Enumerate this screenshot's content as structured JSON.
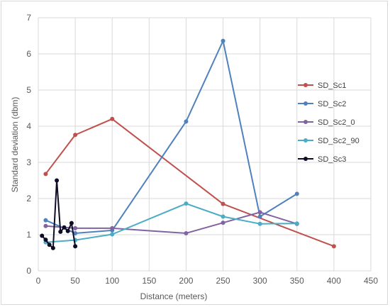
{
  "chart_data": {
    "type": "line",
    "title": "",
    "xlabel": "Distance (meters)",
    "ylabel": "Standard deviation (dbm)",
    "xlim": [
      0,
      450
    ],
    "ylim": [
      0,
      7
    ],
    "xticks": [
      0,
      50,
      100,
      150,
      200,
      250,
      300,
      350,
      400,
      450
    ],
    "yticks": [
      0,
      1,
      2,
      3,
      4,
      5,
      6,
      7
    ],
    "grid": true,
    "legend_position": "right",
    "series": [
      {
        "name": "SD_Sc1",
        "color": "#c0504d",
        "points": [
          [
            10,
            2.68
          ],
          [
            50,
            3.76
          ],
          [
            100,
            4.2
          ],
          [
            250,
            1.85
          ],
          [
            400,
            0.68
          ]
        ]
      },
      {
        "name": "SD_Sc2",
        "color": "#4f81bd",
        "points": [
          [
            10,
            1.4
          ],
          [
            50,
            1.04
          ],
          [
            100,
            1.12
          ],
          [
            200,
            4.13
          ],
          [
            250,
            6.36
          ],
          [
            300,
            1.5
          ],
          [
            350,
            2.13
          ]
        ]
      },
      {
        "name": "SD_Sc2_0",
        "color": "#8064a2",
        "points": [
          [
            10,
            1.24
          ],
          [
            50,
            1.18
          ],
          [
            100,
            1.18
          ],
          [
            200,
            1.04
          ],
          [
            250,
            1.33
          ],
          [
            300,
            1.62
          ],
          [
            350,
            1.3
          ]
        ]
      },
      {
        "name": "SD_Sc2_90",
        "color": "#4bacc6",
        "points": [
          [
            10,
            0.79
          ],
          [
            50,
            0.85
          ],
          [
            100,
            1.01
          ],
          [
            200,
            1.86
          ],
          [
            250,
            1.5
          ],
          [
            300,
            1.3
          ],
          [
            350,
            1.31
          ]
        ]
      },
      {
        "name": "SD_Sc3",
        "color": "#0d0d26",
        "points": [
          [
            5,
            0.97
          ],
          [
            10,
            0.86
          ],
          [
            15,
            0.72
          ],
          [
            20,
            0.63
          ],
          [
            25,
            2.5
          ],
          [
            30,
            1.08
          ],
          [
            35,
            1.2
          ],
          [
            40,
            1.1
          ],
          [
            45,
            1.32
          ],
          [
            50,
            0.68
          ]
        ]
      }
    ]
  }
}
